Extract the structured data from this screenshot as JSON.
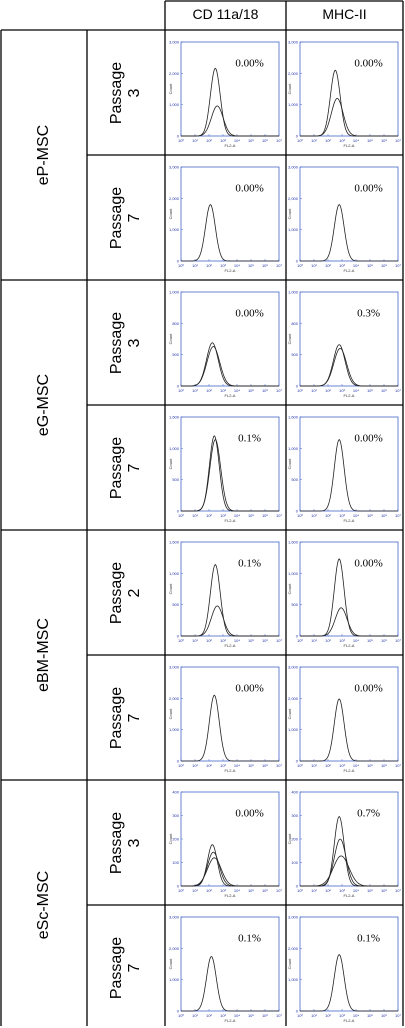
{
  "columns": [
    "CD 11a/18",
    "MHC-II"
  ],
  "groups": [
    {
      "name": "eP-MSC",
      "rows": [
        {
          "passage_word": "Passage",
          "passage_num": "3",
          "cells": [
            {
              "percent": "0.00%",
              "y_ticks": [
                "3,000",
                "2,000",
                "1,000",
                "0"
              ],
              "peaks": [
                {
                  "center": 0.35,
                  "height": 0.72,
                  "width": 0.05
                },
                {
                  "center": 0.37,
                  "height": 0.32,
                  "width": 0.06
                }
              ]
            },
            {
              "percent": "0.00%",
              "y_ticks": [
                "3,000",
                "2,000",
                "1,000",
                "0"
              ],
              "peaks": [
                {
                  "center": 0.36,
                  "height": 0.7,
                  "width": 0.05
                },
                {
                  "center": 0.38,
                  "height": 0.4,
                  "width": 0.06
                }
              ]
            }
          ]
        },
        {
          "passage_word": "Passage",
          "passage_num": "7",
          "cells": [
            {
              "percent": "0.00%",
              "y_ticks": [
                "3,000",
                "2,000",
                "1,000",
                "0"
              ],
              "peaks": [
                {
                  "center": 0.3,
                  "height": 0.6,
                  "width": 0.05
                }
              ]
            },
            {
              "percent": "0.00%",
              "y_ticks": [
                "3,000",
                "2,000",
                "1,000",
                "0"
              ],
              "peaks": [
                {
                  "center": 0.4,
                  "height": 0.6,
                  "width": 0.05
                }
              ]
            }
          ]
        }
      ]
    },
    {
      "name": "eG-MSC",
      "rows": [
        {
          "passage_word": "Passage",
          "passage_num": "3",
          "cells": [
            {
              "percent": "0.00%",
              "y_ticks": [
                "1,000",
                "800",
                "500",
                "0"
              ],
              "peaks": [
                {
                  "center": 0.32,
                  "height": 0.46,
                  "width": 0.06
                },
                {
                  "center": 0.33,
                  "height": 0.42,
                  "width": 0.065
                }
              ]
            },
            {
              "percent": "0.3%",
              "y_ticks": [
                "1,000",
                "800",
                "500",
                "0"
              ],
              "peaks": [
                {
                  "center": 0.4,
                  "height": 0.44,
                  "width": 0.06
                },
                {
                  "center": 0.41,
                  "height": 0.4,
                  "width": 0.065
                }
              ]
            }
          ]
        },
        {
          "passage_word": "Passage",
          "passage_num": "7",
          "cells": [
            {
              "percent": "0.1%",
              "y_ticks": [
                "1,600",
                "1,000",
                "500",
                "0"
              ],
              "peaks": [
                {
                  "center": 0.34,
                  "height": 0.8,
                  "width": 0.05
                },
                {
                  "center": 0.35,
                  "height": 0.76,
                  "width": 0.055
                }
              ]
            },
            {
              "percent": "0.00%",
              "y_ticks": [
                "1,600",
                "1,000",
                "500",
                "0"
              ],
              "peaks": [
                {
                  "center": 0.4,
                  "height": 0.76,
                  "width": 0.05
                }
              ]
            }
          ]
        }
      ]
    },
    {
      "name": "eBM-MSC",
      "rows": [
        {
          "passage_word": "Passage",
          "passage_num": "2",
          "cells": [
            {
              "percent": "0.1%",
              "y_ticks": [
                "1,600",
                "1,000",
                "500",
                "0"
              ],
              "peaks": [
                {
                  "center": 0.35,
                  "height": 0.76,
                  "width": 0.05
                },
                {
                  "center": 0.37,
                  "height": 0.32,
                  "width": 0.06
                }
              ]
            },
            {
              "percent": "0.00%",
              "y_ticks": [
                "1,600",
                "1,000",
                "500",
                "0"
              ],
              "peaks": [
                {
                  "center": 0.4,
                  "height": 0.82,
                  "width": 0.05
                },
                {
                  "center": 0.42,
                  "height": 0.3,
                  "width": 0.06
                }
              ]
            }
          ]
        },
        {
          "passage_word": "Passage",
          "passage_num": "7",
          "cells": [
            {
              "percent": "0.00%",
              "y_ticks": [
                "3,000",
                "2,000",
                "1,000",
                "0"
              ],
              "peaks": [
                {
                  "center": 0.34,
                  "height": 0.7,
                  "width": 0.05
                }
              ]
            },
            {
              "percent": "0.00%",
              "y_ticks": [
                "3,000",
                "2,000",
                "1,000",
                "0"
              ],
              "peaks": [
                {
                  "center": 0.4,
                  "height": 0.66,
                  "width": 0.05
                }
              ]
            }
          ]
        }
      ]
    },
    {
      "name": "eSc-MSC",
      "rows": [
        {
          "passage_word": "Passage",
          "passage_num": "3",
          "cells": [
            {
              "percent": "0.00%",
              "y_ticks": [
                "400",
                "300",
                "200",
                "100",
                "0"
              ],
              "peaks": [
                {
                  "center": 0.32,
                  "height": 0.44,
                  "width": 0.05
                },
                {
                  "center": 0.33,
                  "height": 0.36,
                  "width": 0.06
                },
                {
                  "center": 0.34,
                  "height": 0.3,
                  "width": 0.07
                }
              ]
            },
            {
              "percent": "0.7%",
              "y_ticks": [
                "400",
                "300",
                "200",
                "100",
                "0"
              ],
              "peaks": [
                {
                  "center": 0.4,
                  "height": 0.74,
                  "width": 0.05
                },
                {
                  "center": 0.41,
                  "height": 0.5,
                  "width": 0.06
                },
                {
                  "center": 0.42,
                  "height": 0.32,
                  "width": 0.08
                }
              ]
            }
          ]
        },
        {
          "passage_word": "Passage",
          "passage_num": "7",
          "cells": [
            {
              "percent": "0.1%",
              "y_ticks": [
                "3,000",
                "2,000",
                "1,000",
                "0"
              ],
              "peaks": [
                {
                  "center": 0.31,
                  "height": 0.58,
                  "width": 0.05
                }
              ]
            },
            {
              "percent": "0.1%",
              "y_ticks": [
                "3,000",
                "2,000",
                "1,000",
                "0"
              ],
              "peaks": [
                {
                  "center": 0.4,
                  "height": 0.6,
                  "width": 0.05
                }
              ]
            }
          ]
        }
      ]
    }
  ],
  "axes": {
    "x_label": "FL2-A",
    "y_label": "Count",
    "x_ticks": [
      "10⁰",
      "10¹",
      "10²",
      "10³",
      "10⁴",
      "10⁵",
      "10⁶",
      "10⁷"
    ]
  },
  "colors": {
    "border": "#000000",
    "plot_frame": "#4466cc",
    "curve": "#222222"
  }
}
